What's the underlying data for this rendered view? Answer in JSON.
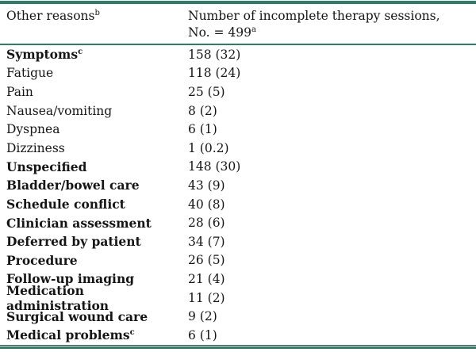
{
  "table": {
    "header": {
      "col1": {
        "text": "Other reasons",
        "sup": "b"
      },
      "col2": {
        "line1": "Number of incomplete therapy sessions,",
        "line2": "No. = 499",
        "sup": "a"
      }
    },
    "rows": [
      {
        "label": "Symptoms",
        "sup": "c",
        "bold": true,
        "value": "158 (32)"
      },
      {
        "label": "Fatigue",
        "sup": "",
        "bold": false,
        "value": "118 (24)"
      },
      {
        "label": "Pain",
        "sup": "",
        "bold": false,
        "value": "25 (5)"
      },
      {
        "label": "Nausea/vomiting",
        "sup": "",
        "bold": false,
        "value": "8 (2)"
      },
      {
        "label": "Dyspnea",
        "sup": "",
        "bold": false,
        "value": "6 (1)"
      },
      {
        "label": "Dizziness",
        "sup": "",
        "bold": false,
        "value": "1 (0.2)"
      },
      {
        "label": "Unspecified",
        "sup": "",
        "bold": true,
        "value": "148 (30)"
      },
      {
        "label": "Bladder/bowel care",
        "sup": "",
        "bold": true,
        "value": "43 (9)"
      },
      {
        "label": "Schedule conflict",
        "sup": "",
        "bold": true,
        "value": "40 (8)"
      },
      {
        "label": "Clinician assessment",
        "sup": "",
        "bold": true,
        "value": "28 (6)"
      },
      {
        "label": "Deferred by patient",
        "sup": "",
        "bold": true,
        "value": "34 (7)"
      },
      {
        "label": "Procedure",
        "sup": "",
        "bold": true,
        "value": "26 (5)"
      },
      {
        "label": "Follow-up imaging",
        "sup": "",
        "bold": true,
        "value": "21 (4)"
      },
      {
        "label": "Medication administration",
        "sup": "",
        "bold": true,
        "value": "11 (2)"
      },
      {
        "label": "Surgical wound care",
        "sup": "",
        "bold": true,
        "value": "9 (2)"
      },
      {
        "label": "Medical problems",
        "sup": "c",
        "bold": true,
        "value": "6 (1)"
      }
    ]
  },
  "colors": {
    "rule_teal": "#2e7d66",
    "rule_dark": "#24443a",
    "text": "#151515",
    "background": "#ffffff"
  }
}
